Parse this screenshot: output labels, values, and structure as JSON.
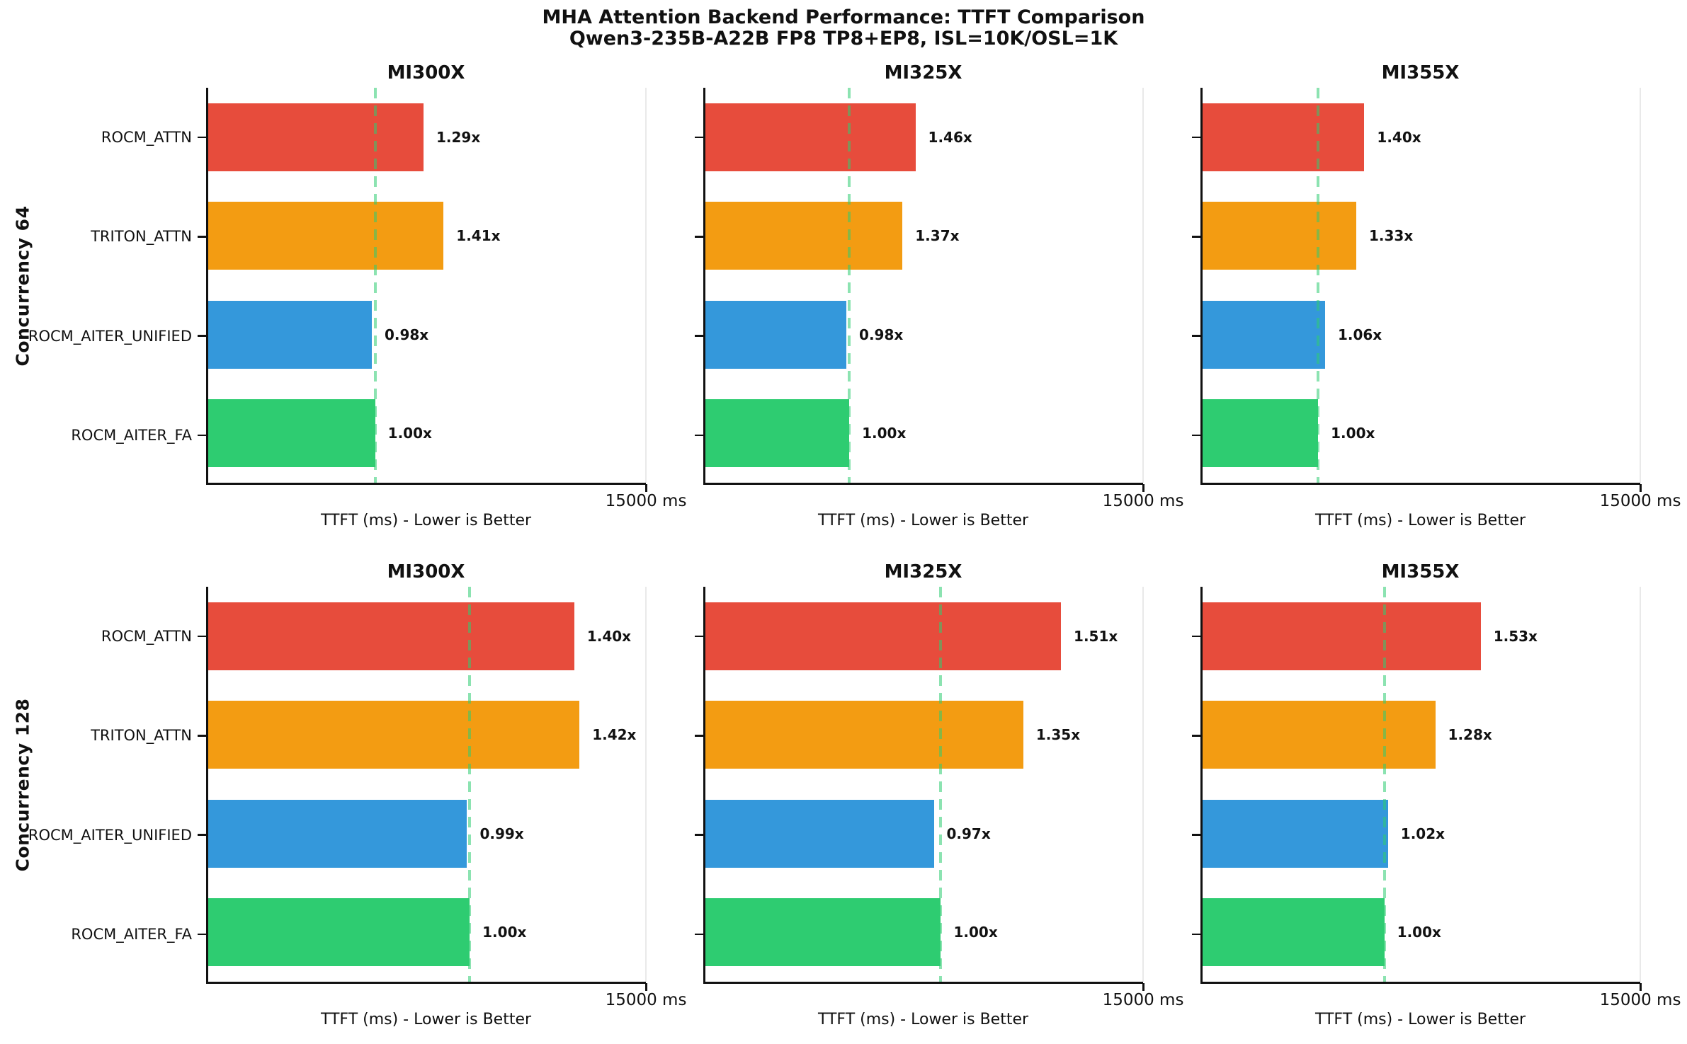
{
  "chart_data": {
    "type": "bar",
    "orientation": "horizontal",
    "title": "MHA Attention Backend Performance: TTFT Comparison",
    "subtitle": "Qwen3-235B-A22B FP8 TP8+EP8, ISL=10K/OSL=1K",
    "xlabel": "TTFT (ms) - Lower is Better",
    "x_max_tick_label": "15000 ms",
    "x_max_ms": 15000,
    "grid": "off",
    "legend": "none",
    "categories": [
      "ROCM_ATTN",
      "TRITON_ATTN",
      "ROCM_AITER_UNIFIED",
      "ROCM_AITER_FA"
    ],
    "bar_colors": [
      "#e74c3c",
      "#f39c12",
      "#3498db",
      "#2ecc71"
    ],
    "baseline_line_color": "#2ecc71",
    "axis_color": "#111111",
    "rows": [
      {
        "row_label": "Concurrency 64",
        "subplots": [
          {
            "title": "MI300X",
            "baseline_ttft_ms_est": 5720,
            "ratios": [
              1.29,
              1.41,
              0.98,
              1.0
            ],
            "value_labels": [
              "1.29x",
              "1.41x",
              "0.98x",
              "1.00x"
            ]
          },
          {
            "title": "MI325X",
            "baseline_ttft_ms_est": 4930,
            "ratios": [
              1.46,
              1.37,
              0.98,
              1.0
            ],
            "value_labels": [
              "1.46x",
              "1.37x",
              "0.98x",
              "1.00x"
            ]
          },
          {
            "title": "MI355X",
            "baseline_ttft_ms_est": 3960,
            "ratios": [
              1.4,
              1.33,
              1.06,
              1.0
            ],
            "value_labels": [
              "1.40x",
              "1.33x",
              "1.06x",
              "1.00x"
            ]
          }
        ]
      },
      {
        "row_label": "Concurrency 128",
        "subplots": [
          {
            "title": "MI300X",
            "baseline_ttft_ms_est": 8960,
            "ratios": [
              1.4,
              1.42,
              0.99,
              1.0
            ],
            "value_labels": [
              "1.40x",
              "1.42x",
              "0.99x",
              "1.00x"
            ]
          },
          {
            "title": "MI325X",
            "baseline_ttft_ms_est": 8070,
            "ratios": [
              1.51,
              1.35,
              0.97,
              1.0
            ],
            "value_labels": [
              "1.51x",
              "1.35x",
              "0.97x",
              "1.00x"
            ]
          },
          {
            "title": "MI355X",
            "baseline_ttft_ms_est": 6230,
            "ratios": [
              1.53,
              1.28,
              1.02,
              1.0
            ],
            "value_labels": [
              "1.53x",
              "1.28x",
              "1.02x",
              "1.00x"
            ]
          }
        ]
      }
    ]
  }
}
